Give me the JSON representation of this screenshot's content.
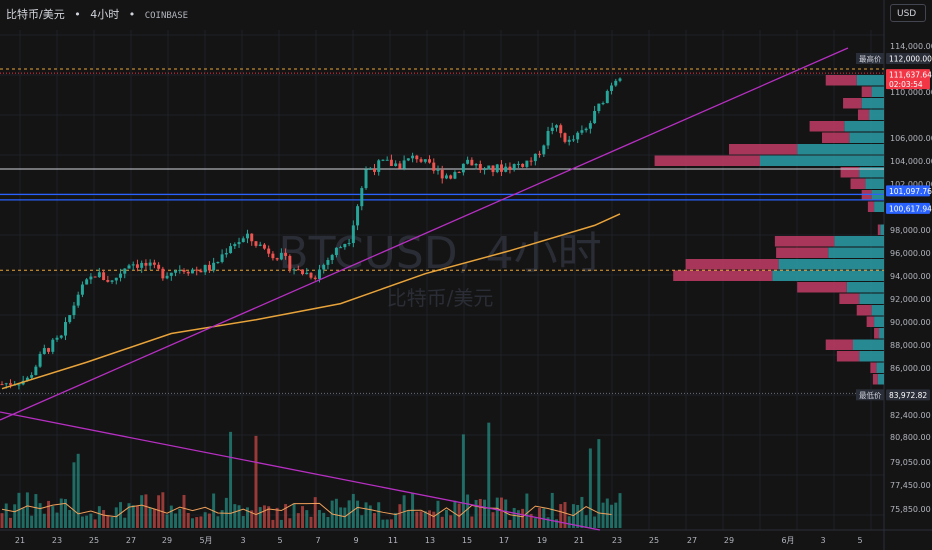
{
  "header": {
    "symbol": "比特币/美元",
    "interval": "4小时",
    "exchange": "COINBASE",
    "sep": "•"
  },
  "currency_button": "USD",
  "watermark": {
    "main": "BTCUSD, 4小时",
    "sub": "比特币/美元"
  },
  "colors": {
    "up": "#26a69a",
    "down": "#ef5350",
    "ma": "#e8a33a",
    "trend": "#b62fc2",
    "vol_ma": "#f0a05a",
    "vp_up": "#2a9ea8",
    "vp_down": "#c13c66",
    "blue_line": "#2962ff",
    "white_line": "#d1d4dc",
    "orange_dash": "#e8a33a",
    "high_badge": "#2a2e39",
    "price_badge": "#f23645",
    "blue_badge": "#2962ff"
  },
  "y_axis": {
    "ticks_upper": [
      "114,000.00",
      "110,000.00",
      "106,000.00",
      "104,000.00",
      "102,000.00",
      "98,000.00",
      "96,000.00",
      "94,000.00",
      "92,000.00",
      "90,000.00",
      "88,000.00",
      "86,000.00"
    ],
    "ticks_lower": [
      "82,400.00",
      "80,800.00",
      "79,050.00",
      "77,450.00",
      "75,850.00"
    ]
  },
  "badges": [
    {
      "label": "最高价",
      "value": "112,000.00"
    },
    {
      "label": "",
      "value": "111,637.64",
      "sub": "02:03:54"
    },
    {
      "label": "",
      "value": "101,097.76"
    },
    {
      "label": "",
      "value": "100,617.94"
    },
    {
      "label": "最低价",
      "value": "83,972.82"
    }
  ],
  "x_axis": {
    "labels": [
      "21",
      "23",
      "25",
      "27",
      "29",
      "5月",
      "3",
      "5",
      "7",
      "9",
      "11",
      "13",
      "15",
      "17",
      "19",
      "21",
      "23",
      "25",
      "27",
      "29",
      "6月",
      "3",
      "5"
    ]
  },
  "chart_data": {
    "type": "candlestick",
    "symbol": "BTCUSD",
    "price_range": [
      82400,
      114800
    ],
    "close_path": [
      [
        0,
        84600
      ],
      [
        6,
        85000
      ],
      [
        10,
        87500
      ],
      [
        14,
        88600
      ],
      [
        18,
        92500
      ],
      [
        22,
        94200
      ],
      [
        26,
        93500
      ],
      [
        30,
        95200
      ],
      [
        34,
        94900
      ],
      [
        38,
        94200
      ],
      [
        42,
        94700
      ],
      [
        46,
        94500
      ],
      [
        50,
        94800
      ],
      [
        54,
        96800
      ],
      [
        58,
        97300
      ],
      [
        62,
        96400
      ],
      [
        66,
        95600
      ],
      [
        70,
        94400
      ],
      [
        74,
        94100
      ],
      [
        78,
        95900
      ],
      [
        82,
        97300
      ],
      [
        86,
        103200
      ],
      [
        90,
        103800
      ],
      [
        94,
        103700
      ],
      [
        98,
        104400
      ],
      [
        102,
        103100
      ],
      [
        106,
        102700
      ],
      [
        110,
        104100
      ],
      [
        114,
        103100
      ],
      [
        118,
        103400
      ],
      [
        122,
        103700
      ],
      [
        126,
        104200
      ],
      [
        130,
        107100
      ],
      [
        134,
        105600
      ],
      [
        138,
        106700
      ],
      [
        142,
        109400
      ],
      [
        144,
        110800
      ],
      [
        146,
        111600
      ]
    ],
    "ma_path": [
      [
        0,
        84200
      ],
      [
        20,
        86500
      ],
      [
        40,
        89000
      ],
      [
        60,
        90200
      ],
      [
        80,
        91600
      ],
      [
        100,
        94200
      ],
      [
        120,
        96200
      ],
      [
        140,
        98400
      ],
      [
        146,
        99400
      ]
    ],
    "levels": {
      "high": 112000,
      "last": 111637.64,
      "blue_1": 101097.76,
      "blue_2": 100617.94,
      "low": 83972.82,
      "white": 103300,
      "orange_dash_2": 94500
    },
    "volume_profile": [
      {
        "price": 111000,
        "up": 0.22,
        "down": 0.25
      },
      {
        "price": 110000,
        "up": 0.1,
        "down": 0.08
      },
      {
        "price": 109000,
        "up": 0.18,
        "down": 0.15
      },
      {
        "price": 108000,
        "up": 0.12,
        "down": 0.09
      },
      {
        "price": 107000,
        "up": 0.32,
        "down": 0.28
      },
      {
        "price": 106000,
        "up": 0.28,
        "down": 0.22
      },
      {
        "price": 105000,
        "up": 0.7,
        "down": 0.55
      },
      {
        "price": 104000,
        "up": 1.0,
        "down": 0.85
      },
      {
        "price": 103000,
        "up": 0.2,
        "down": 0.15
      },
      {
        "price": 102000,
        "up": 0.15,
        "down": 0.12
      },
      {
        "price": 101000,
        "up": 0.1,
        "down": 0.08
      },
      {
        "price": 100000,
        "up": 0.08,
        "down": 0.05
      },
      {
        "price": 98000,
        "up": 0.03,
        "down": 0.02
      },
      {
        "price": 97000,
        "up": 0.4,
        "down": 0.48
      },
      {
        "price": 96000,
        "up": 0.45,
        "down": 0.42
      },
      {
        "price": 95000,
        "up": 0.85,
        "down": 0.75
      },
      {
        "price": 94000,
        "up": 0.9,
        "down": 0.8
      },
      {
        "price": 93000,
        "up": 0.3,
        "down": 0.4
      },
      {
        "price": 92000,
        "up": 0.2,
        "down": 0.16
      },
      {
        "price": 91000,
        "up": 0.1,
        "down": 0.12
      },
      {
        "price": 90000,
        "up": 0.08,
        "down": 0.06
      },
      {
        "price": 89000,
        "up": 0.04,
        "down": 0.04
      },
      {
        "price": 88000,
        "up": 0.25,
        "down": 0.22
      },
      {
        "price": 87000,
        "up": 0.2,
        "down": 0.18
      },
      {
        "price": 86000,
        "up": 0.06,
        "down": 0.05
      },
      {
        "price": 85000,
        "up": 0.05,
        "down": 0.04
      }
    ]
  }
}
